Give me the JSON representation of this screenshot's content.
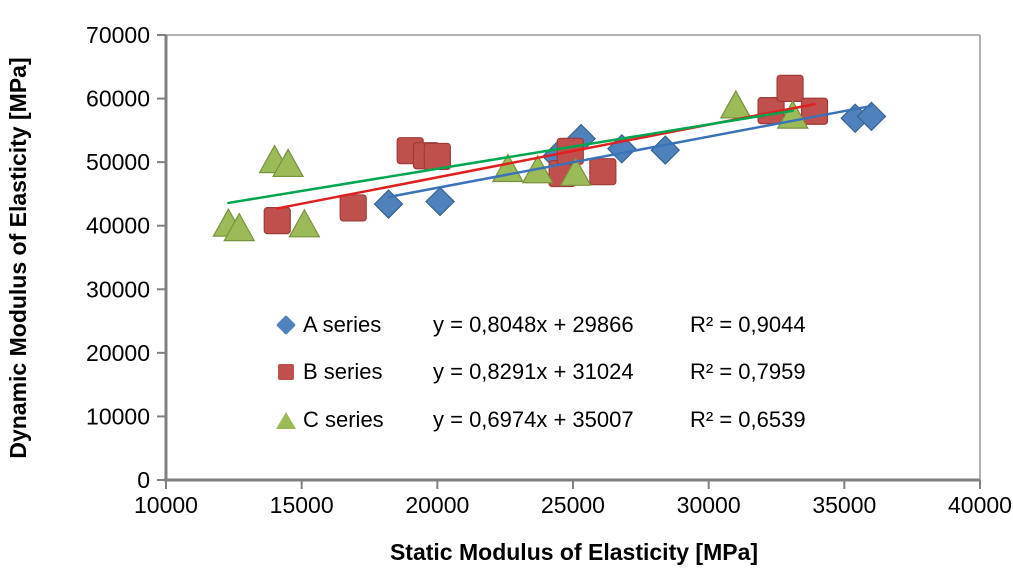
{
  "chart_data": {
    "type": "scatter",
    "title": "",
    "xlabel": "Static Modulus of Elasticity [MPa]",
    "ylabel": "Dynamic Modulus of Elasticity [MPa]",
    "grid": false,
    "legend_position": "inside-bottom-left",
    "axis_color": "#808080",
    "frame_color": "#b3b3b3",
    "tick_label_color": "#000000",
    "x_axis": {
      "min": 10000,
      "max": 40000,
      "tick_step": 5000,
      "ticks": [
        10000,
        15000,
        20000,
        25000,
        30000,
        35000,
        40000
      ]
    },
    "y_axis": {
      "min": 0,
      "max": 70000,
      "tick_step": 10000,
      "ticks": [
        0,
        10000,
        20000,
        30000,
        40000,
        50000,
        60000,
        70000
      ]
    },
    "series": [
      {
        "name": "A series",
        "marker": "diamond",
        "color": "#4f81bd",
        "border_color": "#38618f",
        "trendline_color": "#3b73b9",
        "equation": "y = 0,8048x + 29866",
        "r2": "R² = 0,9044",
        "trendline": {
          "slope": 0.8048,
          "intercept": 29866,
          "x_start": 18200,
          "x_end": 36000
        },
        "points": [
          [
            18200,
            43400
          ],
          [
            20100,
            43800
          ],
          [
            24400,
            50900
          ],
          [
            25300,
            53700
          ],
          [
            26800,
            52100
          ],
          [
            28400,
            51900
          ],
          [
            35400,
            56900
          ],
          [
            36000,
            57200
          ]
        ]
      },
      {
        "name": "B series",
        "marker": "square",
        "color": "#c0504d",
        "border_color": "#9e3b38",
        "trendline_color": "#e02020",
        "equation": "y = 0,8291x + 31024",
        "r2": "R² = 0,7959",
        "trendline": {
          "slope": 0.8291,
          "intercept": 31024,
          "x_start": 14100,
          "x_end": 33900
        },
        "points": [
          [
            14100,
            40800
          ],
          [
            16900,
            42800
          ],
          [
            19000,
            51800
          ],
          [
            19600,
            51000
          ],
          [
            20000,
            50900
          ],
          [
            24600,
            48200
          ],
          [
            24900,
            51700
          ],
          [
            26100,
            48500
          ],
          [
            32300,
            58100
          ],
          [
            33000,
            61600
          ],
          [
            33900,
            58000
          ]
        ]
      },
      {
        "name": "C series",
        "marker": "triangle",
        "color": "#9bbb59",
        "border_color": "#7a9140",
        "trendline_color": "#00a64f",
        "equation": "y = 0,6974x + 35007",
        "r2": "R² = 0,6539",
        "trendline": {
          "slope": 0.6974,
          "intercept": 35007,
          "x_start": 12300,
          "x_end": 33100
        },
        "points": [
          [
            12300,
            40400
          ],
          [
            12700,
            39700
          ],
          [
            14000,
            50400
          ],
          [
            14500,
            49800
          ],
          [
            15100,
            40300
          ],
          [
            22600,
            49000
          ],
          [
            23700,
            48800
          ],
          [
            25100,
            48400
          ],
          [
            31000,
            59000
          ],
          [
            33100,
            57400
          ]
        ]
      }
    ]
  }
}
